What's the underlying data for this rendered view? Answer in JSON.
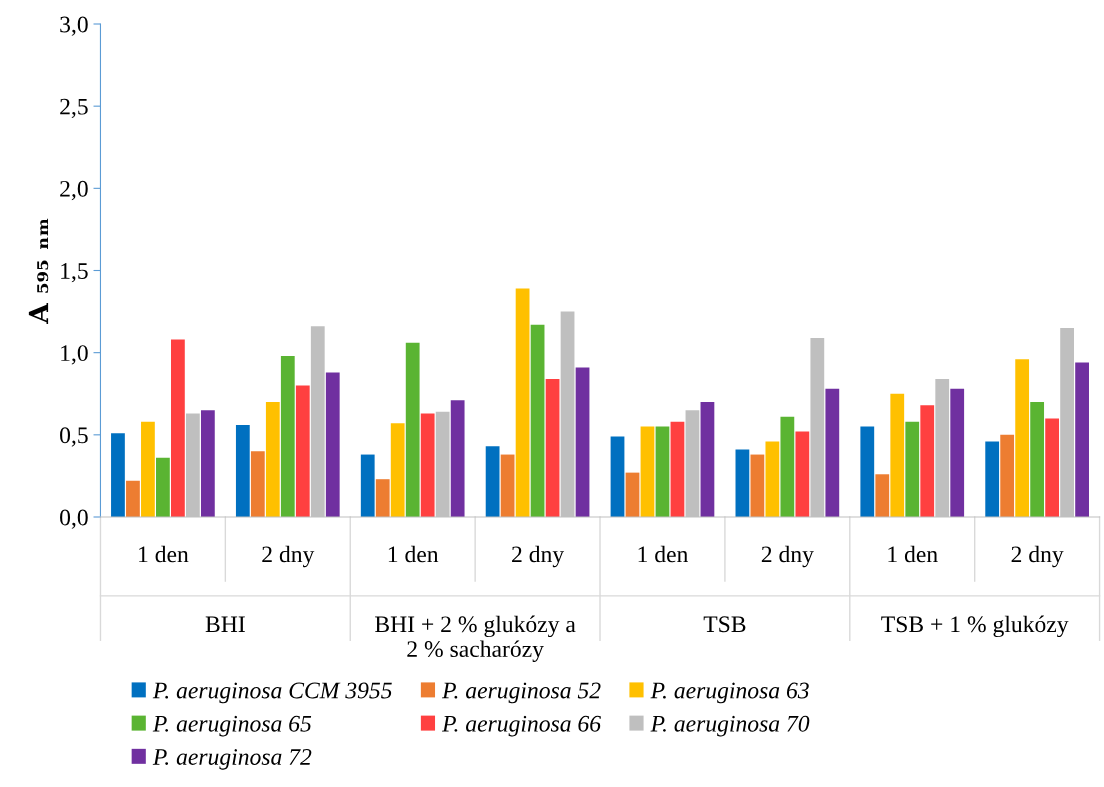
{
  "chart_data": {
    "type": "bar",
    "ylabel": "A ₅₉₅ ₙₘ",
    "categories": [
      "1 den",
      "2 dny",
      "1 den",
      "2 dny",
      "1 den",
      "2 dny",
      "1 den",
      "2 dny"
    ],
    "annotations": [
      "BHI",
      "BHI + 2 % glukózy a\n2 % sacharózy",
      "TSB",
      "TSB + 1 % glukózy"
    ],
    "series": [
      {
        "name": "P. aeruginosa CCM 3955",
        "color": "#0070c0",
        "values": [
          0.51,
          0.56,
          0.38,
          0.43,
          0.49,
          0.41,
          0.55,
          0.46
        ]
      },
      {
        "name": "P. aeruginosa 52",
        "color": "#ed7d31",
        "values": [
          0.22,
          0.4,
          0.23,
          0.38,
          0.27,
          0.38,
          0.26,
          0.5
        ]
      },
      {
        "name": "P. aeruginosa 63",
        "color": "#ffc000",
        "values": [
          0.58,
          0.7,
          0.57,
          1.39,
          0.55,
          0.46,
          0.75,
          0.96
        ]
      },
      {
        "name": "P. aeruginosa 65",
        "color": "#5ab432",
        "values": [
          0.36,
          0.98,
          1.06,
          1.17,
          0.55,
          0.61,
          0.58,
          0.7
        ]
      },
      {
        "name": "P. aeruginosa 66",
        "color": "#ff4040",
        "values": [
          1.08,
          0.8,
          0.63,
          0.84,
          0.58,
          0.52,
          0.68,
          0.6
        ]
      },
      {
        "name": "P. aeruginosa 70",
        "color": "#bfbfbf",
        "values": [
          0.63,
          1.16,
          0.64,
          1.25,
          0.65,
          1.09,
          0.84,
          1.15
        ]
      },
      {
        "name": "P. aeruginosa 72",
        "color": "#7030a0",
        "values": [
          0.65,
          0.88,
          0.71,
          0.91,
          0.7,
          0.78,
          0.78,
          0.94
        ]
      }
    ],
    "ylim": [
      0,
      3
    ],
    "yticks": [
      {
        "value": 0,
        "label": "0,0"
      },
      {
        "value": 0.5,
        "label": "0,5"
      },
      {
        "value": 1,
        "label": "1,0"
      },
      {
        "value": 1.5,
        "label": "1,5"
      },
      {
        "value": 2,
        "label": "2,0"
      },
      {
        "value": 2.5,
        "label": "2,5"
      },
      {
        "value": 3,
        "label": "3,0"
      }
    ],
    "grid": false,
    "legend": "bottom"
  }
}
